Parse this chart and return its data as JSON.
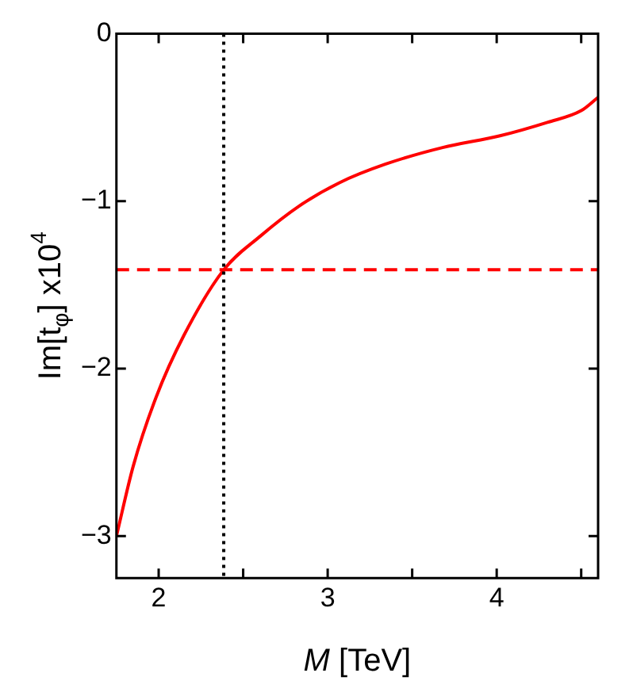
{
  "chart_data": {
    "type": "line",
    "xlabel": "M [TeV]",
    "ylabel": "Im[t$_{φ}$] x10$^{4}$",
    "x": [
      1.75,
      1.85,
      1.985,
      2.15,
      2.385,
      2.6,
      2.83,
      3.07,
      3.34,
      3.68,
      4.02,
      4.3,
      4.5,
      4.6
    ],
    "series": [
      {
        "color": "#ff0000",
        "values": [
          -3.0,
          -2.58,
          -2.17,
          -1.8,
          -1.41,
          -1.21,
          -1.03,
          -0.89,
          -0.78,
          -0.68,
          -0.61,
          -0.53,
          -0.46,
          -0.38
        ]
      }
    ],
    "xlim": [
      1.75,
      4.6
    ],
    "ylim": [
      -3.25,
      0
    ],
    "xticks": [
      2,
      {
        "value": 2.5,
        "label": null
      },
      3,
      {
        "value": 3.5,
        "label": null
      },
      4,
      {
        "value": 4.5,
        "label": null
      }
    ],
    "yticks": [
      0,
      -1,
      -2,
      -3
    ],
    "ref_lines": [
      {
        "axis": "y",
        "value": -1.41,
        "color": "#ff0000",
        "line_style": "dashed"
      },
      {
        "axis": "x",
        "value": 2.385,
        "color": "#000000",
        "line_style": "dotted"
      }
    ],
    "grid": false,
    "legend": false,
    "marker": "none",
    "line_style": "solid"
  }
}
